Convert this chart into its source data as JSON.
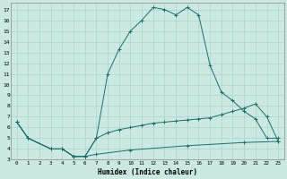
{
  "xlabel": "Humidex (Indice chaleur)",
  "bg_color": "#cbe8e3",
  "grid_color": "#aad4cc",
  "line_color": "#1a7068",
  "xlim": [
    -0.5,
    23.5
  ],
  "ylim": [
    3.0,
    17.6
  ],
  "xticks": [
    0,
    1,
    2,
    3,
    4,
    5,
    6,
    7,
    8,
    9,
    10,
    11,
    12,
    13,
    14,
    15,
    16,
    17,
    18,
    19,
    20,
    21,
    22,
    23
  ],
  "yticks": [
    3,
    4,
    5,
    6,
    7,
    8,
    9,
    10,
    11,
    12,
    13,
    14,
    15,
    16,
    17
  ],
  "curve1_x": [
    0,
    1,
    3,
    4,
    5,
    6,
    7,
    8,
    9,
    10,
    11,
    12,
    13,
    14,
    15,
    16,
    17,
    18,
    19,
    20,
    21,
    22,
    23
  ],
  "curve1_y": [
    6.5,
    5.0,
    4.0,
    4.0,
    3.3,
    3.3,
    5.0,
    11.0,
    13.3,
    15.0,
    16.0,
    17.2,
    17.0,
    16.5,
    17.2,
    16.5,
    11.8,
    9.3,
    8.5,
    7.5,
    6.8,
    5.0,
    5.0
  ],
  "curve2_x": [
    0,
    1,
    3,
    4,
    5,
    6,
    7,
    8,
    9,
    10,
    11,
    12,
    13,
    14,
    15,
    16,
    17,
    18,
    19,
    20,
    21,
    22,
    23
  ],
  "curve2_y": [
    6.5,
    5.0,
    4.0,
    4.0,
    3.3,
    3.3,
    5.0,
    5.5,
    5.8,
    6.0,
    6.2,
    6.4,
    6.5,
    6.6,
    6.7,
    6.8,
    6.9,
    7.2,
    7.5,
    7.8,
    8.2,
    7.0,
    4.7
  ],
  "curve3_x": [
    0,
    1,
    3,
    4,
    5,
    6,
    7,
    10,
    15,
    20,
    23
  ],
  "curve3_y": [
    6.5,
    5.0,
    4.0,
    4.0,
    3.3,
    3.3,
    3.5,
    3.9,
    4.3,
    4.6,
    4.7
  ],
  "figsize": [
    3.2,
    2.0
  ],
  "dpi": 100
}
